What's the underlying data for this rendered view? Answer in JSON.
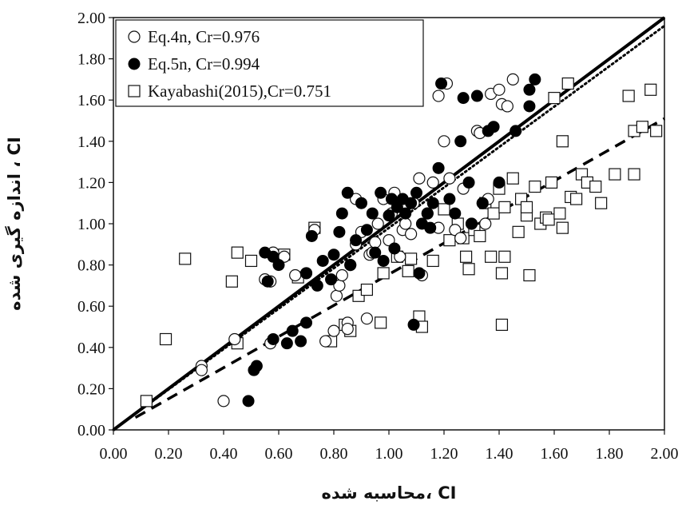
{
  "chart_data": {
    "type": "scatter",
    "xlabel": "CI ،محاسبه شده",
    "ylabel": "CI ، اندازه گیری شده",
    "xlim": [
      0,
      2
    ],
    "ylim": [
      0,
      2
    ],
    "x_ticks": [
      "0.00",
      "0.20",
      "0.40",
      "0.60",
      "0.80",
      "1.00",
      "1.20",
      "1.40",
      "1.60",
      "1.80",
      "2.00"
    ],
    "y_ticks": [
      "0.00",
      "0.20",
      "0.40",
      "0.60",
      "0.80",
      "1.00",
      "1.20",
      "1.40",
      "1.60",
      "1.80",
      "2.00"
    ],
    "legend_position": "top-left",
    "grid": false,
    "series": [
      {
        "name": "Eq.4n, Cr=0.976",
        "marker": "open-circle",
        "points": [
          [
            0.32,
            0.31
          ],
          [
            0.32,
            0.29
          ],
          [
            0.4,
            0.14
          ],
          [
            0.44,
            0.44
          ],
          [
            0.55,
            0.73
          ],
          [
            0.57,
            0.72
          ],
          [
            0.57,
            0.42
          ],
          [
            0.58,
            0.86
          ],
          [
            0.62,
            0.84
          ],
          [
            0.66,
            0.75
          ],
          [
            0.7,
            0.76
          ],
          [
            0.73,
            0.97
          ],
          [
            0.77,
            0.43
          ],
          [
            0.8,
            0.48
          ],
          [
            0.81,
            0.65
          ],
          [
            0.82,
            0.7
          ],
          [
            0.83,
            0.75
          ],
          [
            0.85,
            0.52
          ],
          [
            0.85,
            0.49
          ],
          [
            0.86,
            0.8
          ],
          [
            0.88,
            0.9
          ],
          [
            0.88,
            1.12
          ],
          [
            0.9,
            0.96
          ],
          [
            0.92,
            0.54
          ],
          [
            0.93,
            0.85
          ],
          [
            0.94,
            0.86
          ],
          [
            0.95,
            0.91
          ],
          [
            0.96,
            1.0
          ],
          [
            0.98,
            1.12
          ],
          [
            1.0,
            0.92
          ],
          [
            1.01,
            1.05
          ],
          [
            1.02,
            1.15
          ],
          [
            1.04,
            0.84
          ],
          [
            1.05,
            0.97
          ],
          [
            1.06,
            1.0
          ],
          [
            1.08,
            0.95
          ],
          [
            1.09,
            1.1
          ],
          [
            1.11,
            1.22
          ],
          [
            1.12,
            0.75
          ],
          [
            1.14,
            1.05
          ],
          [
            1.16,
            1.2
          ],
          [
            1.18,
            1.62
          ],
          [
            1.18,
            0.98
          ],
          [
            1.2,
            1.4
          ],
          [
            1.21,
            1.68
          ],
          [
            1.22,
            1.22
          ],
          [
            1.24,
            0.97
          ],
          [
            1.26,
            0.93
          ],
          [
            1.27,
            1.17
          ],
          [
            1.3,
            1.0
          ],
          [
            1.32,
            1.45
          ],
          [
            1.33,
            1.44
          ],
          [
            1.34,
            1.1
          ],
          [
            1.35,
            1.0
          ],
          [
            1.36,
            1.12
          ],
          [
            1.37,
            1.63
          ],
          [
            1.4,
            1.65
          ],
          [
            1.41,
            1.58
          ],
          [
            1.43,
            1.57
          ],
          [
            1.45,
            1.7
          ]
        ]
      },
      {
        "name": "Eq.5n, Cr=0.994",
        "marker": "filled-circle",
        "points": [
          [
            0.49,
            0.14
          ],
          [
            0.51,
            0.29
          ],
          [
            0.52,
            0.31
          ],
          [
            0.55,
            0.86
          ],
          [
            0.56,
            0.72
          ],
          [
            0.58,
            0.84
          ],
          [
            0.58,
            0.44
          ],
          [
            0.6,
            0.8
          ],
          [
            0.63,
            0.42
          ],
          [
            0.65,
            0.48
          ],
          [
            0.68,
            0.43
          ],
          [
            0.7,
            0.52
          ],
          [
            0.7,
            0.76
          ],
          [
            0.72,
            0.94
          ],
          [
            0.74,
            0.7
          ],
          [
            0.76,
            0.82
          ],
          [
            0.79,
            0.73
          ],
          [
            0.8,
            0.85
          ],
          [
            0.82,
            0.96
          ],
          [
            0.83,
            1.05
          ],
          [
            0.85,
            1.15
          ],
          [
            0.86,
            0.8
          ],
          [
            0.88,
            0.92
          ],
          [
            0.9,
            1.1
          ],
          [
            0.92,
            0.97
          ],
          [
            0.94,
            1.05
          ],
          [
            0.95,
            0.86
          ],
          [
            0.97,
            1.15
          ],
          [
            0.98,
            0.82
          ],
          [
            1.0,
            1.04
          ],
          [
            1.01,
            1.12
          ],
          [
            1.02,
            0.88
          ],
          [
            1.03,
            1.08
          ],
          [
            1.05,
            1.12
          ],
          [
            1.06,
            1.05
          ],
          [
            1.08,
            1.1
          ],
          [
            1.09,
            0.51
          ],
          [
            1.1,
            1.15
          ],
          [
            1.11,
            0.76
          ],
          [
            1.12,
            1.0
          ],
          [
            1.14,
            1.05
          ],
          [
            1.15,
            0.98
          ],
          [
            1.16,
            1.1
          ],
          [
            1.18,
            1.27
          ],
          [
            1.19,
            1.68
          ],
          [
            1.22,
            1.12
          ],
          [
            1.24,
            1.05
          ],
          [
            1.26,
            1.4
          ],
          [
            1.27,
            1.61
          ],
          [
            1.29,
            1.2
          ],
          [
            1.3,
            1.0
          ],
          [
            1.32,
            1.62
          ],
          [
            1.34,
            1.1
          ],
          [
            1.36,
            1.45
          ],
          [
            1.38,
            1.47
          ],
          [
            1.4,
            1.2
          ],
          [
            1.46,
            1.45
          ],
          [
            1.51,
            1.65
          ],
          [
            1.51,
            1.57
          ],
          [
            1.53,
            1.7
          ]
        ]
      },
      {
        "name": "Kayabashi(2015),Cr=0.751",
        "marker": "open-square",
        "points": [
          [
            0.12,
            0.14
          ],
          [
            0.19,
            0.44
          ],
          [
            0.26,
            0.83
          ],
          [
            0.43,
            0.72
          ],
          [
            0.45,
            0.86
          ],
          [
            0.45,
            0.42
          ],
          [
            0.5,
            0.82
          ],
          [
            0.62,
            0.85
          ],
          [
            0.67,
            0.74
          ],
          [
            0.73,
            0.98
          ],
          [
            0.79,
            0.43
          ],
          [
            0.84,
            0.51
          ],
          [
            0.86,
            0.48
          ],
          [
            0.89,
            0.65
          ],
          [
            0.92,
            0.68
          ],
          [
            0.97,
            0.52
          ],
          [
            0.98,
            0.76
          ],
          [
            1.03,
            0.84
          ],
          [
            1.07,
            0.77
          ],
          [
            1.08,
            0.83
          ],
          [
            1.11,
            0.55
          ],
          [
            1.12,
            0.5
          ],
          [
            1.16,
            0.82
          ],
          [
            1.2,
            1.07
          ],
          [
            1.22,
            0.92
          ],
          [
            1.25,
            1.0
          ],
          [
            1.27,
            0.93
          ],
          [
            1.28,
            0.84
          ],
          [
            1.29,
            0.78
          ],
          [
            1.31,
            0.97
          ],
          [
            1.33,
            0.94
          ],
          [
            1.35,
            1.1
          ],
          [
            1.37,
            0.84
          ],
          [
            1.38,
            1.05
          ],
          [
            1.4,
            1.17
          ],
          [
            1.41,
            0.76
          ],
          [
            1.41,
            0.51
          ],
          [
            1.42,
            1.08
          ],
          [
            1.42,
            0.84
          ],
          [
            1.45,
            1.22
          ],
          [
            1.47,
            0.96
          ],
          [
            1.48,
            1.12
          ],
          [
            1.5,
            1.04
          ],
          [
            1.5,
            1.08
          ],
          [
            1.51,
            0.75
          ],
          [
            1.53,
            1.18
          ],
          [
            1.55,
            1.0
          ],
          [
            1.57,
            1.03
          ],
          [
            1.58,
            1.02
          ],
          [
            1.59,
            1.2
          ],
          [
            1.6,
            1.61
          ],
          [
            1.62,
            1.05
          ],
          [
            1.63,
            1.4
          ],
          [
            1.63,
            0.98
          ],
          [
            1.65,
            1.68
          ],
          [
            1.66,
            1.13
          ],
          [
            1.68,
            1.12
          ],
          [
            1.7,
            1.24
          ],
          [
            1.72,
            1.2
          ],
          [
            1.75,
            1.18
          ],
          [
            1.77,
            1.1
          ],
          [
            1.82,
            1.24
          ],
          [
            1.87,
            1.62
          ],
          [
            1.89,
            1.24
          ],
          [
            1.89,
            1.45
          ],
          [
            1.92,
            1.47
          ],
          [
            1.95,
            1.65
          ],
          [
            1.97,
            1.45
          ]
        ]
      }
    ],
    "lines": [
      {
        "style": "solid",
        "from": [
          0,
          0
        ],
        "to": [
          2,
          2
        ]
      },
      {
        "style": "dotted",
        "from": [
          0,
          0
        ],
        "to": [
          2,
          1.96
        ]
      },
      {
        "style": "dashed",
        "from": [
          0.08,
          0.06
        ],
        "to": [
          2,
          1.51
        ]
      }
    ]
  }
}
